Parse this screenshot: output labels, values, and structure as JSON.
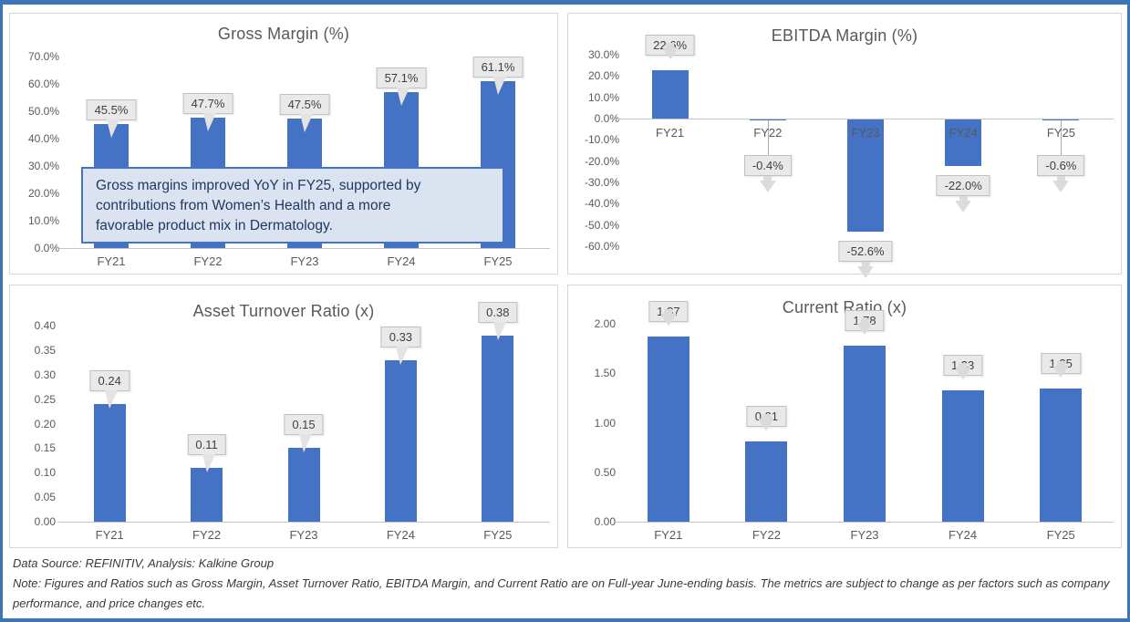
{
  "colors": {
    "bar": "#4472C4",
    "page_border": "#3C74BA",
    "callout_bg": "#EAE9E9",
    "annotation_bg": "#DBE3F1",
    "annotation_border": "#4472C4",
    "annotation_text": "#1F3864",
    "axis_text": "#595959"
  },
  "chart_data": [
    {
      "type": "bar",
      "title": "Gross Margin (%)",
      "categories": [
        "FY21",
        "FY22",
        "FY23",
        "FY24",
        "FY25"
      ],
      "values": [
        45.5,
        47.7,
        47.5,
        57.1,
        61.1
      ],
      "data_labels": [
        "45.5%",
        "47.7%",
        "47.5%",
        "57.1%",
        "61.1%"
      ],
      "y_ticks": [
        "70.0%",
        "60.0%",
        "50.0%",
        "40.0%",
        "30.0%",
        "20.0%",
        "10.0%",
        "0.0%"
      ],
      "ylim": [
        0,
        70
      ],
      "grid": false,
      "legend": false,
      "annotation": "Gross margins improved YoY in FY25, supported by contributions from Women’s Health and a more favorable product mix in Dermatology."
    },
    {
      "type": "bar",
      "title": "EBITDA Margin (%)",
      "categories": [
        "FY21",
        "FY22",
        "FY23",
        "FY24",
        "FY25"
      ],
      "values": [
        22.6,
        -0.4,
        -52.6,
        -22.0,
        -0.6
      ],
      "data_labels": [
        "22.6%",
        "-0.4%",
        "-52.6%",
        "-22.0%",
        "-0.6%"
      ],
      "y_ticks": [
        "30.0%",
        "20.0%",
        "10.0%",
        "0.0%",
        "-10.0%",
        "-20.0%",
        "-30.0%",
        "-40.0%",
        "-50.0%",
        "-60.0%"
      ],
      "ylim": [
        -60,
        30
      ],
      "grid": false,
      "legend": false
    },
    {
      "type": "bar",
      "title": "Asset Turnover Ratio (x)",
      "categories": [
        "FY21",
        "FY22",
        "FY23",
        "FY24",
        "FY25"
      ],
      "values": [
        0.24,
        0.11,
        0.15,
        0.33,
        0.38
      ],
      "data_labels": [
        "0.24",
        "0.11",
        "0.15",
        "0.33",
        "0.38"
      ],
      "y_ticks": [
        "0.40",
        "0.35",
        "0.30",
        "0.25",
        "0.20",
        "0.15",
        "0.10",
        "0.05",
        "0.00"
      ],
      "ylim": [
        0,
        0.4
      ],
      "grid": false,
      "legend": false
    },
    {
      "type": "bar",
      "title": "Current Ratio (x)",
      "categories": [
        "FY21",
        "FY22",
        "FY23",
        "FY24",
        "FY25"
      ],
      "values": [
        1.87,
        0.81,
        1.78,
        1.33,
        1.35
      ],
      "data_labels": [
        "1.87",
        "0.81",
        "1.78",
        "1.33",
        "1.35"
      ],
      "y_ticks": [
        "2.00",
        "1.50",
        "1.00",
        "0.50",
        "0.00"
      ],
      "ylim": [
        0,
        2.0
      ],
      "grid": false,
      "legend": false
    }
  ],
  "footer": {
    "source": "Data Source: REFINITIV, Analysis: Kalkine Group",
    "note": "Note: Figures and Ratios such as Gross Margin, Asset Turnover Ratio, EBITDA Margin, and Current Ratio are on Full-year June-ending basis. The metrics are subject to change as per factors such as company performance, and price changes etc."
  }
}
